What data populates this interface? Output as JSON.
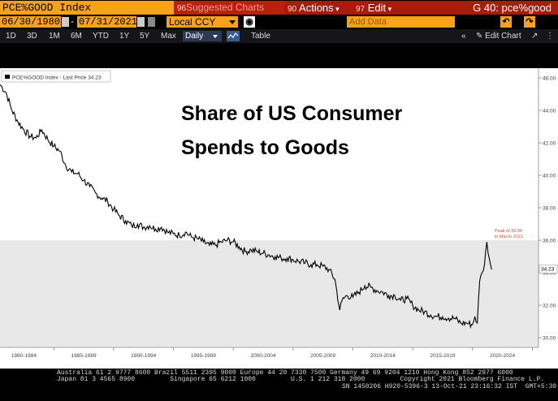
{
  "header": {
    "ticker": "PCE%GOOD Index",
    "suggested": "Suggested Charts",
    "suggested_num": "96",
    "actions_num": "90",
    "actions": "Actions",
    "edit_num": "97",
    "edit": "Edit",
    "title": "G 40: pce%good"
  },
  "toolbar": {
    "start_date": "06/30/1980",
    "end_date": "07/31/2021",
    "currency": "Local CCY",
    "add_data_placeholder": "Add Data",
    "edit_chart": "Edit Chart",
    "undo_icon": "undo-icon",
    "redo_icon": "redo-icon"
  },
  "periods": [
    "1D",
    "3D",
    "1M",
    "6M",
    "YTD",
    "1Y",
    "5Y",
    "Max"
  ],
  "frequency": "Daily",
  "table_label": "Table",
  "legend": {
    "label": "PCE%GOOD Index - Last Price 34.23"
  },
  "annotation": {
    "title_line1": "Share of US Consumer",
    "title_line2": "Spends to Goods",
    "peak_line1": "Peak of 35.94",
    "peak_line2": "in March 2021"
  },
  "colors": {
    "line": "#000000",
    "shaded_band": "#e8e8e8",
    "peak_text": "#d4502a",
    "ticker_bg": "#f7a21b",
    "title_bar": "#a91b0d"
  },
  "chart_data": {
    "type": "line",
    "title": "Share of US Consumer Spends to Goods",
    "series": [
      {
        "name": "PCE%GOOD Index",
        "last_price": 34.23,
        "x": [
          1980.5,
          1981.0,
          1981.5,
          1982.0,
          1982.5,
          1983.0,
          1983.5,
          1984.0,
          1984.5,
          1985.0,
          1985.5,
          1986.0,
          1986.5,
          1987.0,
          1987.5,
          1988.0,
          1988.5,
          1989.0,
          1989.5,
          1990.0,
          1990.5,
          1991.0,
          1991.5,
          1992.0,
          1992.5,
          1993.0,
          1993.5,
          1994.0,
          1994.5,
          1995.0,
          1995.5,
          1996.0,
          1996.5,
          1997.0,
          1997.5,
          1998.0,
          1998.5,
          1999.0,
          1999.5,
          2000.0,
          2000.5,
          2001.0,
          2001.5,
          2002.0,
          2002.5,
          2003.0,
          2003.5,
          2004.0,
          2004.5,
          2005.0,
          2005.5,
          2006.0,
          2006.5,
          2007.0,
          2007.5,
          2008.0,
          2008.5,
          2008.9,
          2009.1,
          2009.5,
          2010.0,
          2010.5,
          2011.0,
          2011.5,
          2012.0,
          2012.5,
          2013.0,
          2013.5,
          2014.0,
          2014.5,
          2015.0,
          2015.5,
          2016.0,
          2016.5,
          2017.0,
          2017.5,
          2018.0,
          2018.5,
          2019.0,
          2019.5,
          2020.0,
          2020.2,
          2020.4,
          2020.6,
          2020.8,
          2021.0,
          2021.2,
          2021.4,
          2021.6
        ],
        "y": [
          45.6,
          45.1,
          44.0,
          43.3,
          42.8,
          42.4,
          42.3,
          42.8,
          42.2,
          41.8,
          41.5,
          40.6,
          40.2,
          40.1,
          39.7,
          39.3,
          38.9,
          38.6,
          38.4,
          37.9,
          37.5,
          37.2,
          36.9,
          37.0,
          36.8,
          36.9,
          36.7,
          36.8,
          36.5,
          36.4,
          36.3,
          36.5,
          36.2,
          36.1,
          35.9,
          35.7,
          35.7,
          35.9,
          36.0,
          35.9,
          35.6,
          35.3,
          35.4,
          35.3,
          35.2,
          35.1,
          35.0,
          34.9,
          34.9,
          34.8,
          34.7,
          34.6,
          34.5,
          34.5,
          34.4,
          34.2,
          33.6,
          31.7,
          32.3,
          32.6,
          32.5,
          32.8,
          33.2,
          33.1,
          32.9,
          32.8,
          32.6,
          32.6,
          32.3,
          32.4,
          32.0,
          31.7,
          31.6,
          31.4,
          31.3,
          31.3,
          31.2,
          31.2,
          30.9,
          30.9,
          30.8,
          31.3,
          30.9,
          33.5,
          34.0,
          34.5,
          35.9,
          34.9,
          34.2
        ]
      }
    ],
    "x_tick_labels": [
      "1980-1984",
      "1985-1989",
      "1990-1994",
      "1995-1999",
      "2000-2004",
      "2005-2009",
      "2010-2014",
      "2015-2019",
      "2020-2024"
    ],
    "y_ticks": [
      30.0,
      32.0,
      34.0,
      36.0,
      38.0,
      40.0,
      42.0,
      44.0,
      46.0
    ],
    "xlim": [
      1980.5,
      2024.5
    ],
    "ylim": [
      29.4,
      46.6
    ],
    "last_value_label": "34.23",
    "grid": false,
    "legend_position": "top-left"
  },
  "footer": {
    "line1": "Australia 61 2 9777 8600 Brazil 5511 2395 9000 Europe 44 20 7330 7500 Germany 49 69 9204 1210 Hong Kong 852 2977 6000",
    "line2": "Japan 81 3 4565 8900         Singapore 65 6212 1000         U.S. 1 212 318 2000         Copyright 2021 Bloomberg Finance L.P.",
    "line3": "SN 1450206 H920-5396-3 13-Oct-21 23:16:32 IST  GMT+5:30"
  }
}
